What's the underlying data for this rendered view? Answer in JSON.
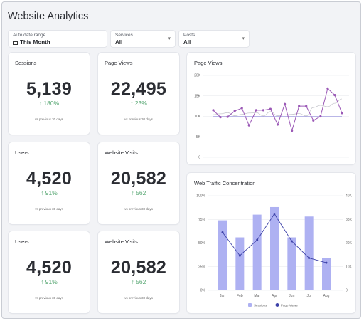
{
  "page": {
    "title": "Website Analytics"
  },
  "filters": {
    "date": {
      "label": "Auto date range",
      "value": "This Month"
    },
    "services": {
      "label": "Services",
      "value": "All"
    },
    "posts": {
      "label": "Posts",
      "value": "All"
    }
  },
  "kpis": [
    {
      "label": "Sessions",
      "value": "5,139",
      "delta": "↑ 180%",
      "note": "vs previous 30 days"
    },
    {
      "label": "Page Views",
      "value": "22,495",
      "delta": "↑ 23%",
      "note": "vs previous 30 days"
    },
    {
      "label": "Users",
      "value": "4,520",
      "delta": "↑ 91%",
      "note": "vs previous 30 days"
    },
    {
      "label": "Website Visits",
      "value": "20,582",
      "delta": "↑ 562",
      "note": "vs previous 30 days"
    },
    {
      "label": "Users",
      "value": "4,520",
      "delta": "↑ 91%",
      "note": "vs previous 30 days"
    },
    {
      "label": "Website Visits",
      "value": "20,582",
      "delta": "↑ 562",
      "note": "vs previous 30 days"
    }
  ],
  "colors": {
    "accent_green": "#57a773",
    "line_purple": "#9b59b6",
    "bar_lavender": "#aeb1f2",
    "line_navy": "#3d42a8"
  },
  "chart_data": [
    {
      "type": "line",
      "title": "Page Views",
      "yticks": [
        "20K",
        "15K",
        "10K",
        "5K",
        "0"
      ],
      "ylim": [
        0,
        20000
      ],
      "grid": true,
      "series": [
        {
          "values": [
            11500,
            9800,
            9900,
            11300,
            12000,
            7800,
            11500,
            11500,
            11800,
            8000,
            13000,
            6500,
            12500,
            12500,
            9000,
            10000,
            16800,
            15200,
            10800
          ]
        }
      ],
      "reference_value": 9900
    },
    {
      "type": "bar",
      "title": "Web Traffic Concentration",
      "categories": [
        "Jan",
        "Feb",
        "Mar",
        "Apr",
        "Jun",
        "Jul",
        "Aug"
      ],
      "y_left_ticks": [
        "100%",
        "75%",
        "50%",
        "25%",
        "0%"
      ],
      "y_right_ticks": [
        "40K",
        "30K",
        "20K",
        "10K",
        "0"
      ],
      "ylim_left": [
        0,
        100
      ],
      "ylim_right": [
        0,
        40000
      ],
      "series": [
        {
          "name": "Sessions",
          "type": "bar",
          "values": [
            74,
            56,
            80,
            88,
            56,
            78,
            34
          ]
        },
        {
          "name": "Page Views",
          "type": "line",
          "values": [
            24500,
            14700,
            21300,
            32300,
            20800,
            13700,
            11700
          ]
        }
      ],
      "legend": "bottom-center"
    }
  ]
}
